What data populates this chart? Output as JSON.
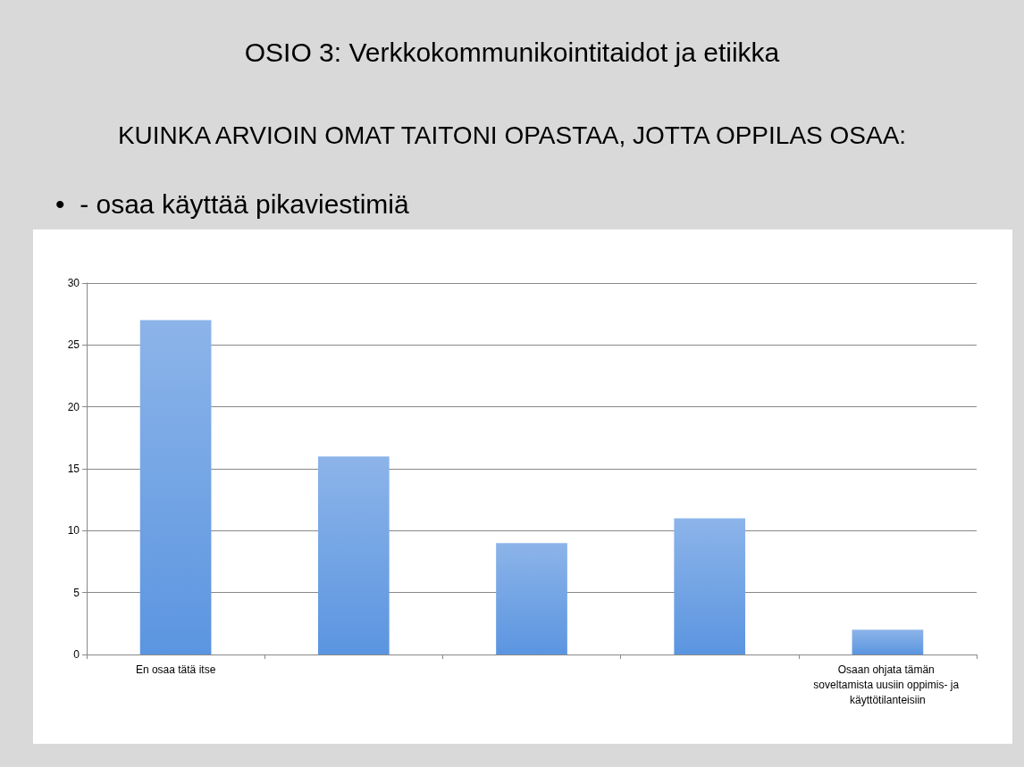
{
  "chart_data": {
    "type": "bar",
    "title": "OSIO 3: Verkkokommunikointitaidot ja etiikka",
    "subtitle": "KUINKA ARVIOIN OMAT TAITONI OPASTAA, JOTTA OPPILAS OSAA:",
    "annotations": [
      "•  - osaa käyttää pikaviestimiä"
    ],
    "categories": [
      "En osaa tätä itse",
      null,
      null,
      null,
      "Osaan ohjata tämän soveltamista uusiin oppimis- ja käyttötilanteisiin"
    ],
    "values": [
      27,
      16,
      9,
      11,
      2
    ],
    "color": "#5b95e0",
    "ylim": [
      0,
      30
    ],
    "yticks": [
      0,
      5,
      10,
      15,
      20,
      25,
      30
    ],
    "grid": "y"
  }
}
